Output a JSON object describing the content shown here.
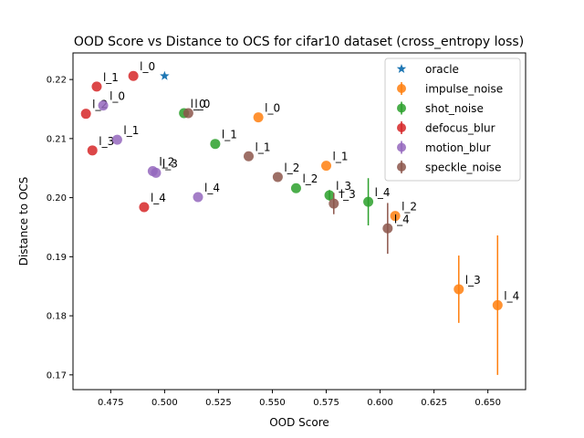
{
  "chart_data": {
    "type": "scatter",
    "title": "OOD Score vs Distance to OCS for cifar10 dataset (cross_entropy loss)",
    "xlabel": "OOD Score",
    "ylabel": "Distance to OCS",
    "xlim": [
      0.4575,
      0.6675
    ],
    "ylim": [
      0.1675,
      0.2245
    ],
    "xticks": [
      "0.475",
      "0.500",
      "0.525",
      "0.550",
      "0.575",
      "0.600",
      "0.625",
      "0.650"
    ],
    "yticks": [
      "0.17",
      "0.18",
      "0.19",
      "0.20",
      "0.21",
      "0.22"
    ],
    "grid": false,
    "legend_position": "top-right",
    "series": [
      {
        "name": "oracle",
        "marker": "star",
        "color": "#1f77b4",
        "points": [
          {
            "x": 0.5,
            "y": 0.2206,
            "label": ""
          }
        ]
      },
      {
        "name": "impulse_noise",
        "marker": "circle",
        "color": "#ff7f0e",
        "points": [
          {
            "x": 0.5435,
            "y": 0.2136,
            "label": "l_0"
          },
          {
            "x": 0.575,
            "y": 0.2054,
            "label": "l_1"
          },
          {
            "x": 0.607,
            "y": 0.1969,
            "label": "l_2"
          },
          {
            "x": 0.6365,
            "y": 0.1845,
            "err": 0.0057,
            "label": "l_3"
          },
          {
            "x": 0.6545,
            "y": 0.1818,
            "err": 0.0118,
            "label": "l_4"
          }
        ]
      },
      {
        "name": "shot_noise",
        "marker": "circle",
        "color": "#2ca02c",
        "points": [
          {
            "x": 0.509,
            "y": 0.2143,
            "label": "l_0"
          },
          {
            "x": 0.5235,
            "y": 0.2091,
            "label": "l_1"
          },
          {
            "x": 0.561,
            "y": 0.2016,
            "label": "l_2"
          },
          {
            "x": 0.5765,
            "y": 0.2004,
            "err": 0.0009,
            "label": "l_3"
          },
          {
            "x": 0.5945,
            "y": 0.1993,
            "err": 0.004,
            "label": "l_4"
          }
        ]
      },
      {
        "name": "defocus_blur",
        "marker": "circle",
        "color": "#d62728",
        "points": [
          {
            "x": 0.4855,
            "y": 0.2206,
            "label": "l_0"
          },
          {
            "x": 0.4685,
            "y": 0.2188,
            "label": "l_1"
          },
          {
            "x": 0.4635,
            "y": 0.2142,
            "label": "l_2"
          },
          {
            "x": 0.4665,
            "y": 0.208,
            "label": "l_3"
          },
          {
            "x": 0.4905,
            "y": 0.1984,
            "label": "l_4"
          }
        ]
      },
      {
        "name": "motion_blur",
        "marker": "circle",
        "color": "#9467bd",
        "points": [
          {
            "x": 0.4715,
            "y": 0.2156,
            "label": "l_0"
          },
          {
            "x": 0.478,
            "y": 0.2098,
            "label": "l_1"
          },
          {
            "x": 0.4945,
            "y": 0.2045,
            "label": "l_2"
          },
          {
            "x": 0.496,
            "y": 0.2042,
            "label": "l_3"
          },
          {
            "x": 0.5155,
            "y": 0.2001,
            "label": "l_4"
          }
        ]
      },
      {
        "name": "speckle_noise",
        "marker": "circle",
        "color": "#8c564b",
        "points": [
          {
            "x": 0.511,
            "y": 0.2143,
            "label": "l_0"
          },
          {
            "x": 0.539,
            "y": 0.207,
            "label": "l_1"
          },
          {
            "x": 0.5525,
            "y": 0.2035,
            "label": "l_2"
          },
          {
            "x": 0.5785,
            "y": 0.199,
            "err": 0.0018,
            "label": "l_3"
          },
          {
            "x": 0.6035,
            "y": 0.1948,
            "err": 0.0043,
            "label": "l_4"
          }
        ]
      }
    ]
  }
}
